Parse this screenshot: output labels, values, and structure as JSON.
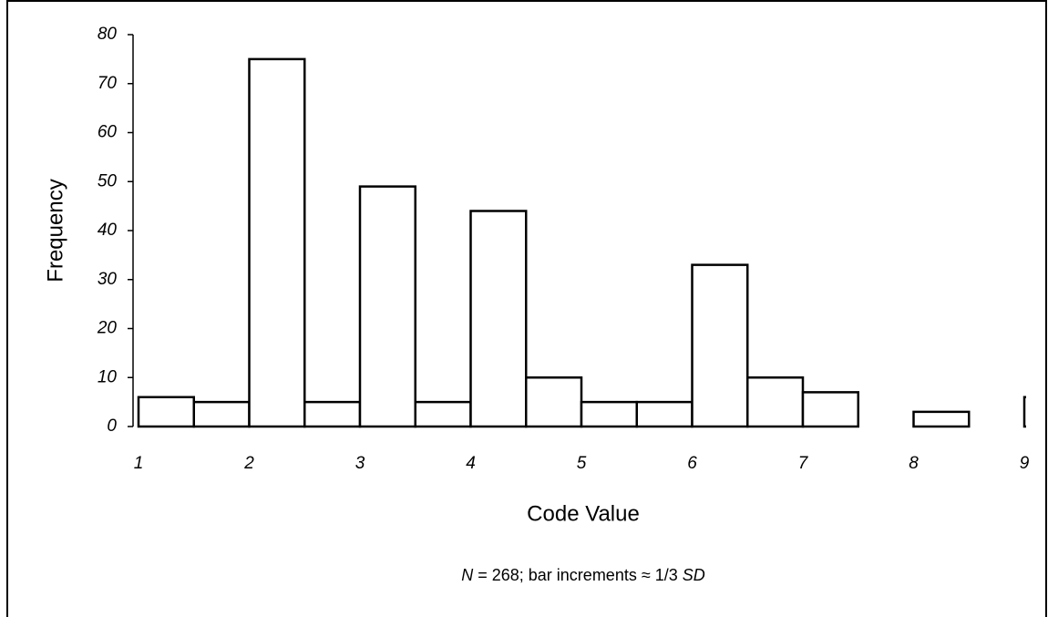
{
  "chart_data": {
    "type": "histogram",
    "xlabel": "Code Value",
    "ylabel": "Frequency",
    "note": [
      "N",
      " = 268; bar increments ≈ 1/3 ",
      "SD"
    ],
    "bins": [
      1,
      1.5,
      2,
      2.5,
      3,
      3.5,
      4,
      4.5,
      5,
      5.5,
      6,
      6.5,
      7,
      7.5,
      8,
      8.5,
      9,
      9.5
    ],
    "values": [
      6,
      5,
      75,
      5,
      49,
      5,
      44,
      10,
      5,
      5,
      33,
      10,
      7,
      0,
      3,
      0,
      6
    ],
    "color": "#ffffff",
    "edgecolor": "#000000",
    "xlim": [
      1,
      9
    ],
    "xticks": [
      1,
      2,
      3,
      4,
      5,
      6,
      7,
      8,
      9
    ],
    "ylim": [
      0,
      80
    ],
    "yticks": [
      0,
      10,
      20,
      30,
      40,
      50,
      60,
      70,
      80
    ]
  }
}
